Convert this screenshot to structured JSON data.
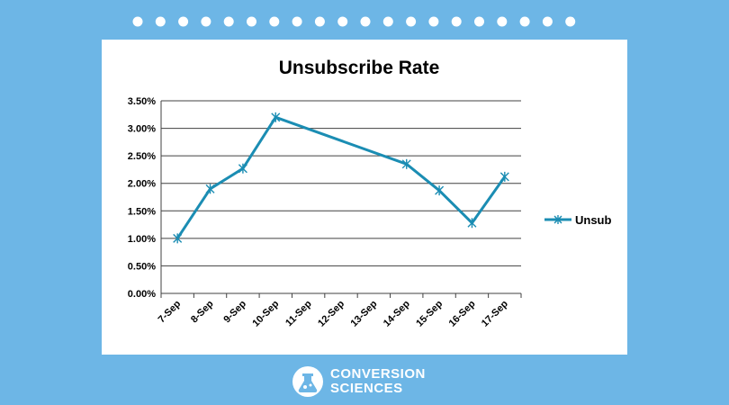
{
  "chart_data": {
    "type": "line",
    "title": "Unsubscribe Rate",
    "xlabel": "",
    "ylabel": "",
    "categories": [
      "7-Sep",
      "8-Sep",
      "9-Sep",
      "10-Sep",
      "11-Sep",
      "12-Sep",
      "13-Sep",
      "14-Sep",
      "15-Sep",
      "16-Sep",
      "17-Sep"
    ],
    "y_ticks": [
      "0.00%",
      "0.50%",
      "1.00%",
      "1.50%",
      "2.00%",
      "2.50%",
      "3.00%",
      "3.50%"
    ],
    "ylim": [
      0,
      3.5
    ],
    "grid": true,
    "legend": "right",
    "series": [
      {
        "name": "Unsub",
        "color": "#1b8db3",
        "points": [
          {
            "x": "7-Sep",
            "y": 1.0
          },
          {
            "x": "8-Sep",
            "y": 1.9
          },
          {
            "x": "9-Sep",
            "y": 2.27
          },
          {
            "x": "10-Sep",
            "y": 3.2
          },
          {
            "x": "14-Sep",
            "y": 2.35
          },
          {
            "x": "15-Sep",
            "y": 1.87
          },
          {
            "x": "16-Sep",
            "y": 1.28
          },
          {
            "x": "17-Sep",
            "y": 2.12
          }
        ]
      }
    ]
  },
  "brand": {
    "line1": "CONVERSION",
    "line2": "SCIENCES",
    "logo_icon": "flask-icon"
  },
  "colors": {
    "background": "#6db6e6",
    "card": "#ffffff",
    "line": "#1b8db3"
  }
}
